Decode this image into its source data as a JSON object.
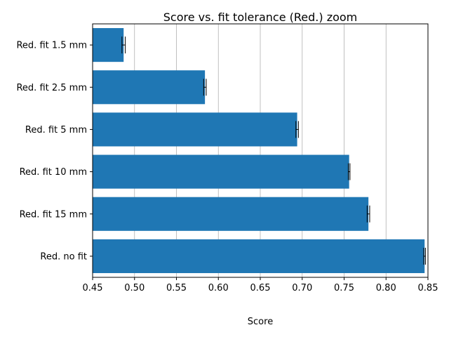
{
  "chart_data": {
    "type": "bar",
    "orientation": "horizontal",
    "title": "Score vs. fit tolerance (Red.) zoom",
    "xlabel": "Score",
    "ylabel": "",
    "xlim": [
      0.45,
      0.85
    ],
    "xticks": [
      0.45,
      0.5,
      0.55,
      0.6,
      0.65,
      0.7,
      0.75,
      0.8,
      0.85
    ],
    "xtick_labels": [
      "0.45",
      "0.50",
      "0.55",
      "0.60",
      "0.65",
      "0.70",
      "0.75",
      "0.80",
      "0.85"
    ],
    "grid": "vertical",
    "bar_color": "#1f77b4",
    "error_color": "#000000",
    "categories": [
      "Red. fit 1.5 mm",
      "Red. fit 2.5 mm",
      "Red. fit 5 mm",
      "Red. fit 10 mm",
      "Red. fit 15 mm",
      "Red. no fit"
    ],
    "values": [
      0.487,
      0.584,
      0.694,
      0.756,
      0.779,
      0.846
    ],
    "errors": [
      0.002,
      0.0015,
      0.0015,
      0.001,
      0.0015,
      0.001
    ]
  }
}
